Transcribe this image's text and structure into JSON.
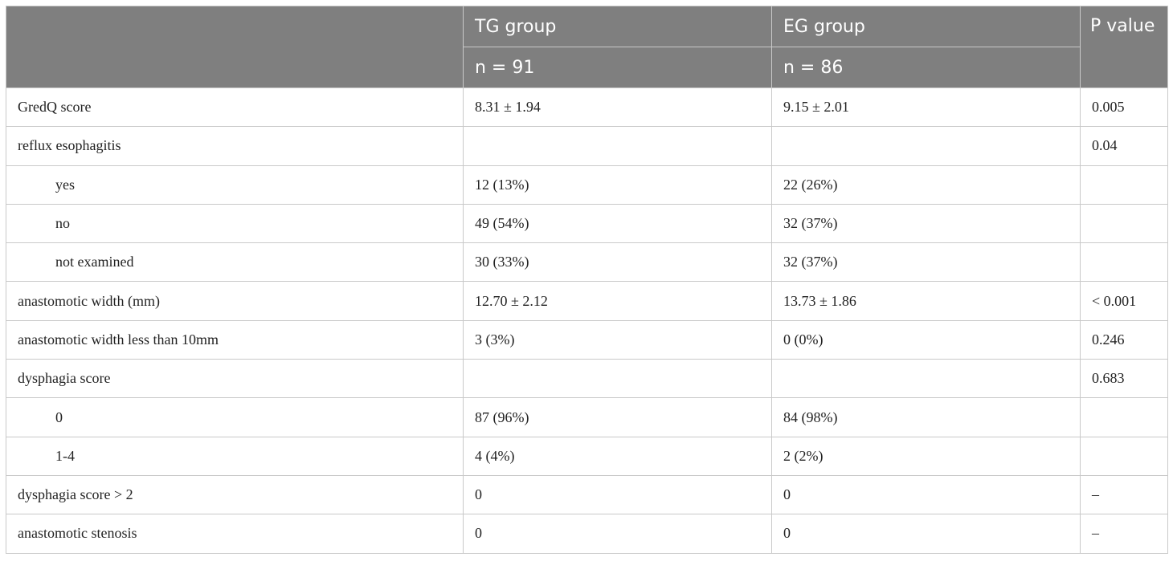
{
  "header": {
    "col1": "TG group",
    "col1_n": "n = 91",
    "col2": "EG group",
    "col2_n": "n = 86",
    "col3": "P value"
  },
  "rows": [
    {
      "label": "GredQ score",
      "indent": false,
      "tg": "8.31 ± 1.94",
      "eg": "9.15 ± 2.01",
      "p": "0.005"
    },
    {
      "label": "reflux esophagitis",
      "indent": false,
      "tg": "",
      "eg": "",
      "p": "0.04"
    },
    {
      "label": "yes",
      "indent": true,
      "tg": "12 (13%)",
      "eg": "22 (26%)",
      "p": ""
    },
    {
      "label": "no",
      "indent": true,
      "tg": "49 (54%)",
      "eg": "32 (37%)",
      "p": ""
    },
    {
      "label": "not examined",
      "indent": true,
      "tg": "30 (33%)",
      "eg": "32 (37%)",
      "p": ""
    },
    {
      "label": "anastomotic width (mm)",
      "indent": false,
      "tg": "12.70 ± 2.12",
      "eg": "13.73 ± 1.86",
      "p": "< 0.001"
    },
    {
      "label": "anastomotic width less than 10mm",
      "indent": false,
      "tg": "3 (3%)",
      "eg": "0 (0%)",
      "p": "0.246"
    },
    {
      "label": "dysphagia score",
      "indent": false,
      "tg": "",
      "eg": "",
      "p": "0.683"
    },
    {
      "label": "0",
      "indent": true,
      "tg": "87 (96%)",
      "eg": "84 (98%)",
      "p": ""
    },
    {
      "label": "1-4",
      "indent": true,
      "tg": "4 (4%)",
      "eg": "2 (2%)",
      "p": ""
    },
    {
      "label": "dysphagia score > 2",
      "indent": false,
      "tg": "0",
      "eg": "0",
      "p": "–"
    },
    {
      "label": "anastomotic stenosis",
      "indent": false,
      "tg": "0",
      "eg": "0",
      "p": "–"
    }
  ]
}
